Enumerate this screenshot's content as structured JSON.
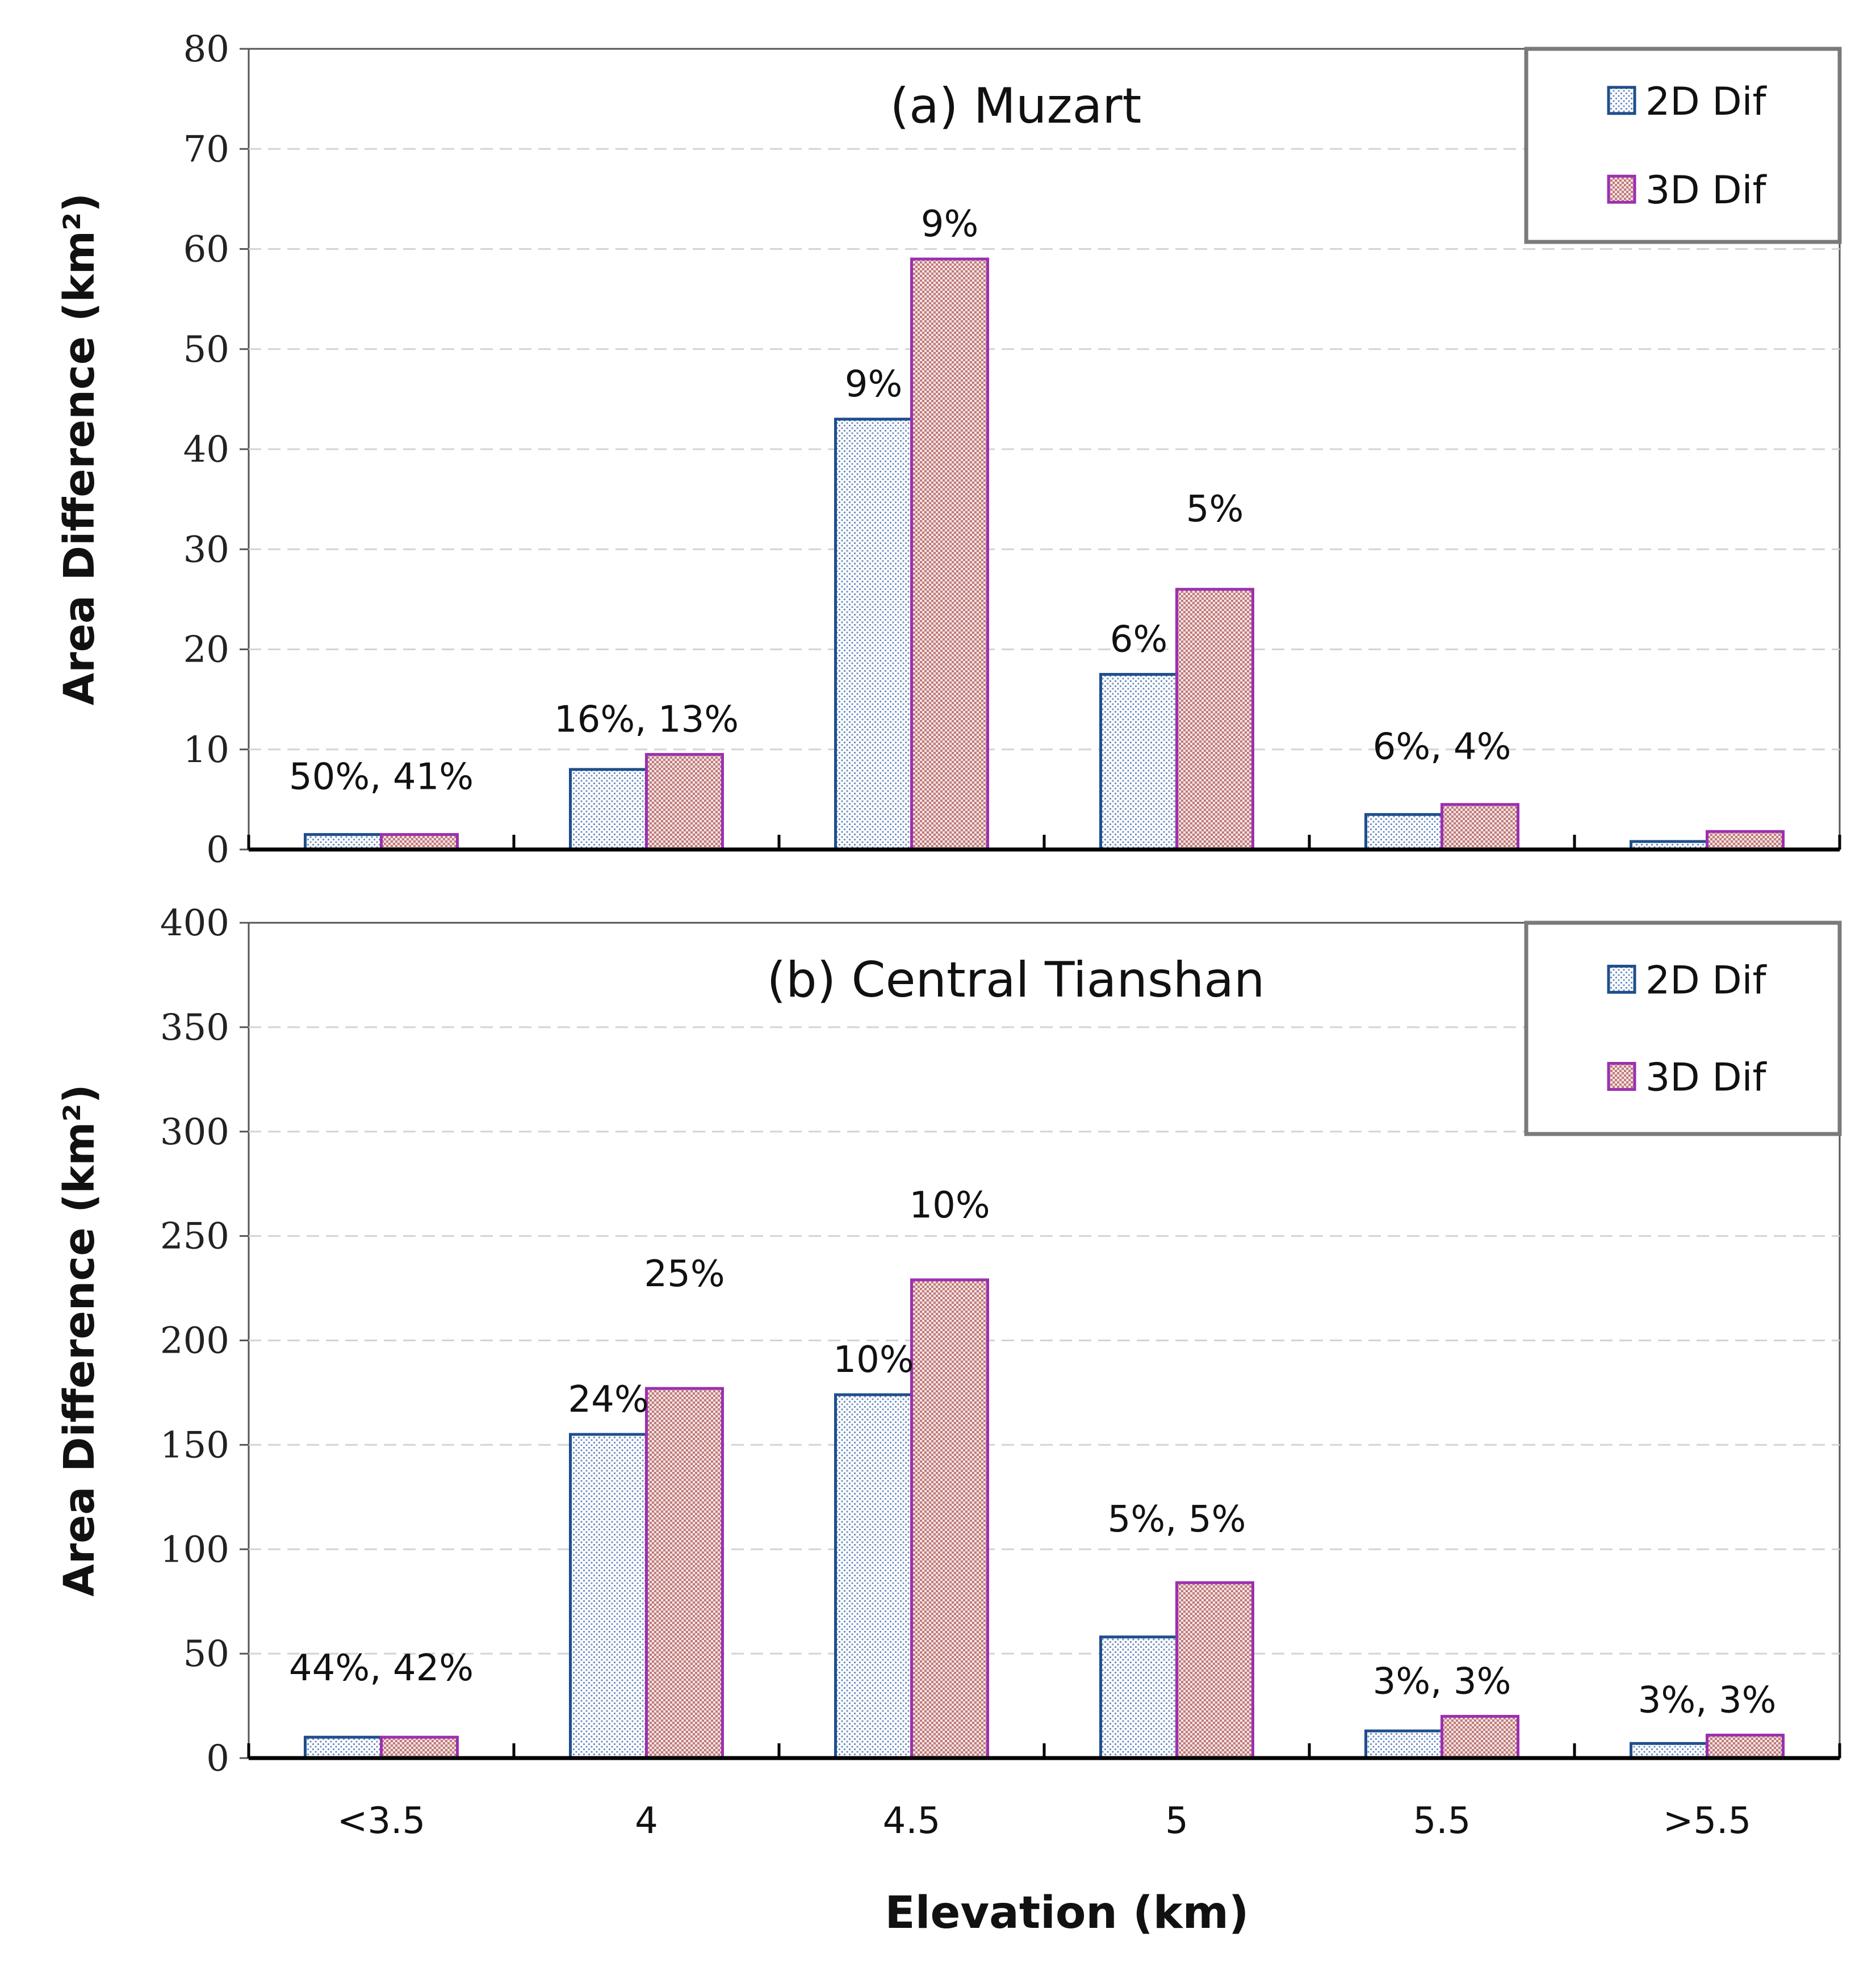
{
  "x_axis_label": "Elevation (km)",
  "categories": [
    "<3.5",
    "4",
    "4.5",
    "5",
    "5.5",
    ">5.5"
  ],
  "legend": [
    "2D Dif",
    "3D Dif"
  ],
  "colors": {
    "bar_2d_stroke": "#1f4e8c",
    "bar_2d_fill_dot": "#6f8fc0",
    "bar_3d_stroke": "#9b30b0",
    "bar_3d_fill_dot": "#c07a7a",
    "grid": "#d4d4d4",
    "legend_border": "#7a7a7a"
  },
  "chart_data": [
    {
      "type": "bar",
      "title": "(a) Muzart",
      "ylabel": "Area Difference  (km²)",
      "xlabel": "Elevation (km)",
      "categories": [
        "<3.5",
        "4",
        "4.5",
        "5",
        "5.5",
        ">5.5"
      ],
      "series": [
        {
          "name": "2D Dif",
          "values": [
            1.5,
            8,
            43,
            17.5,
            3.5,
            0.8
          ]
        },
        {
          "name": "3D Dif",
          "values": [
            1.5,
            9.5,
            59,
            26,
            4.5,
            1.8
          ]
        }
      ],
      "ylim": [
        0,
        80
      ],
      "yticks": [
        0,
        10,
        20,
        30,
        40,
        50,
        60,
        70,
        80
      ],
      "grid": true,
      "legend_position": "top-right",
      "annotations": [
        {
          "text": "50%, 41%",
          "category": "<3.5"
        },
        {
          "text": "16%, 13%",
          "category": "4"
        },
        {
          "text": "9%",
          "category": "4.5",
          "series": "2D Dif"
        },
        {
          "text": "9%",
          "category": "4.5",
          "series": "3D Dif"
        },
        {
          "text": "6%",
          "category": "5",
          "series": "2D Dif"
        },
        {
          "text": "5%",
          "category": "5",
          "series": "3D Dif"
        },
        {
          "text": "6%, 4%",
          "category": "5.5"
        }
      ]
    },
    {
      "type": "bar",
      "title": "(b) Central Tianshan",
      "ylabel": "Area Difference  (km²)",
      "xlabel": "Elevation (km)",
      "categories": [
        "<3.5",
        "4",
        "4.5",
        "5",
        "5.5",
        ">5.5"
      ],
      "series": [
        {
          "name": "2D Dif",
          "values": [
            10,
            155,
            174,
            58,
            13,
            7
          ]
        },
        {
          "name": "3D Dif",
          "values": [
            10,
            177,
            229,
            84,
            20,
            11
          ]
        }
      ],
      "ylim": [
        0,
        400
      ],
      "yticks": [
        0,
        50,
        100,
        150,
        200,
        250,
        300,
        350,
        400
      ],
      "grid": true,
      "legend_position": "top-right",
      "annotations": [
        {
          "text": "44%, 42%",
          "category": "<3.5"
        },
        {
          "text": "24%",
          "category": "4",
          "series": "2D Dif"
        },
        {
          "text": "25%",
          "category": "4",
          "series": "3D Dif"
        },
        {
          "text": "10%",
          "category": "4.5",
          "series": "2D Dif"
        },
        {
          "text": "10%",
          "category": "4.5",
          "series": "3D Dif"
        },
        {
          "text": "5%, 5%",
          "category": "5"
        },
        {
          "text": "3%,  3%",
          "category": "5.5"
        },
        {
          "text": "3%, 3%",
          "category": ">5.5"
        }
      ]
    }
  ]
}
